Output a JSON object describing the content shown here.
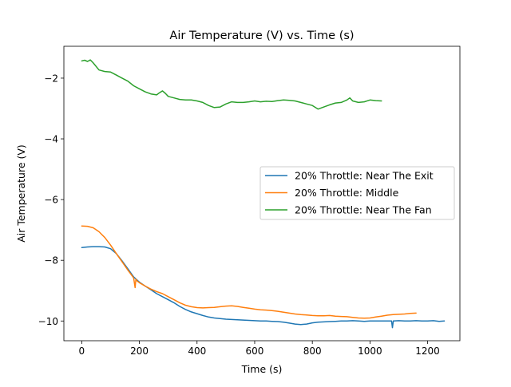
{
  "chart_data": {
    "type": "line",
    "title": "Air Temperature (V) vs. Time (s)",
    "xlabel": "Time (s)",
    "ylabel": "Air Temperature (V)",
    "xlim": [
      -62,
      1312
    ],
    "ylim": [
      -10.65,
      -0.95
    ],
    "xticks": [
      {
        "value": 0,
        "label": "0"
      },
      {
        "value": 200,
        "label": "200"
      },
      {
        "value": 400,
        "label": "400"
      },
      {
        "value": 600,
        "label": "600"
      },
      {
        "value": 800,
        "label": "800"
      },
      {
        "value": 1000,
        "label": "1000"
      },
      {
        "value": 1200,
        "label": "1200"
      }
    ],
    "yticks": [
      {
        "value": -10,
        "label": "−10"
      },
      {
        "value": -8,
        "label": "−8"
      },
      {
        "value": -6,
        "label": "−6"
      },
      {
        "value": -4,
        "label": "−4"
      },
      {
        "value": -2,
        "label": "−2"
      }
    ],
    "grid": false,
    "legend_position": "center-right",
    "series": [
      {
        "name": "20% Throttle: Near The Exit",
        "color": "#1f77b4",
        "x": [
          0,
          20,
          40,
          60,
          80,
          100,
          120,
          140,
          160,
          180,
          200,
          220,
          240,
          260,
          280,
          300,
          320,
          340,
          360,
          380,
          400,
          420,
          440,
          460,
          480,
          500,
          520,
          540,
          560,
          580,
          600,
          620,
          640,
          660,
          680,
          700,
          720,
          740,
          760,
          780,
          800,
          820,
          840,
          860,
          880,
          900,
          920,
          940,
          960,
          980,
          1000,
          1020,
          1040,
          1060,
          1075,
          1078,
          1081,
          1100,
          1120,
          1140,
          1160,
          1180,
          1200,
          1220,
          1240,
          1258
        ],
        "y": [
          -7.58,
          -7.56,
          -7.55,
          -7.55,
          -7.56,
          -7.62,
          -7.78,
          -8.02,
          -8.28,
          -8.55,
          -8.72,
          -8.85,
          -8.97,
          -9.1,
          -9.2,
          -9.3,
          -9.4,
          -9.52,
          -9.62,
          -9.7,
          -9.76,
          -9.82,
          -9.87,
          -9.9,
          -9.92,
          -9.94,
          -9.95,
          -9.96,
          -9.97,
          -9.98,
          -9.99,
          -10.0,
          -10.0,
          -10.01,
          -10.02,
          -10.04,
          -10.07,
          -10.1,
          -10.12,
          -10.1,
          -10.06,
          -10.04,
          -10.03,
          -10.02,
          -10.01,
          -10.0,
          -10.0,
          -9.99,
          -10.0,
          -10.01,
          -10.0,
          -10.0,
          -10.0,
          -10.0,
          -10.0,
          -10.22,
          -10.0,
          -9.99,
          -10.0,
          -10.0,
          -9.99,
          -10.0,
          -10.0,
          -9.99,
          -10.01,
          -10.0
        ]
      },
      {
        "name": "20% Throttle: Middle",
        "color": "#ff7f0e",
        "x": [
          0,
          20,
          40,
          60,
          80,
          100,
          120,
          140,
          160,
          180,
          185,
          188,
          192,
          200,
          220,
          240,
          260,
          280,
          300,
          320,
          340,
          360,
          380,
          400,
          420,
          440,
          460,
          480,
          500,
          520,
          540,
          560,
          580,
          600,
          620,
          640,
          660,
          680,
          700,
          720,
          740,
          760,
          780,
          800,
          820,
          840,
          860,
          880,
          900,
          920,
          940,
          960,
          980,
          1000,
          1020,
          1040,
          1060,
          1080,
          1100,
          1120,
          1140,
          1160
        ],
        "y": [
          -6.87,
          -6.88,
          -6.93,
          -7.06,
          -7.25,
          -7.5,
          -7.78,
          -8.05,
          -8.32,
          -8.58,
          -8.9,
          -8.62,
          -8.68,
          -8.74,
          -8.85,
          -8.95,
          -9.03,
          -9.1,
          -9.2,
          -9.3,
          -9.4,
          -9.48,
          -9.53,
          -9.56,
          -9.57,
          -9.56,
          -9.55,
          -9.53,
          -9.51,
          -9.5,
          -9.52,
          -9.55,
          -9.58,
          -9.61,
          -9.63,
          -9.64,
          -9.66,
          -9.68,
          -9.71,
          -9.74,
          -9.77,
          -9.79,
          -9.8,
          -9.82,
          -9.83,
          -9.83,
          -9.82,
          -9.84,
          -9.85,
          -9.86,
          -9.88,
          -9.9,
          -9.91,
          -9.9,
          -9.87,
          -9.84,
          -9.81,
          -9.79,
          -9.78,
          -9.77,
          -9.75,
          -9.74
        ]
      },
      {
        "name": "20% Throttle: Near The Fan",
        "color": "#2ca02c",
        "x": [
          0,
          10,
          20,
          30,
          40,
          60,
          80,
          100,
          120,
          140,
          160,
          180,
          200,
          220,
          240,
          260,
          270,
          280,
          290,
          300,
          320,
          340,
          360,
          380,
          400,
          420,
          440,
          460,
          480,
          500,
          520,
          540,
          560,
          580,
          600,
          620,
          640,
          660,
          680,
          700,
          720,
          740,
          760,
          780,
          800,
          820,
          840,
          860,
          880,
          900,
          920,
          930,
          940,
          960,
          980,
          1000,
          1020,
          1040
        ],
        "y": [
          -1.43,
          -1.41,
          -1.45,
          -1.4,
          -1.5,
          -1.73,
          -1.78,
          -1.8,
          -1.9,
          -2.0,
          -2.1,
          -2.25,
          -2.35,
          -2.45,
          -2.52,
          -2.55,
          -2.48,
          -2.42,
          -2.5,
          -2.6,
          -2.65,
          -2.7,
          -2.72,
          -2.72,
          -2.75,
          -2.8,
          -2.9,
          -2.97,
          -2.95,
          -2.85,
          -2.78,
          -2.8,
          -2.8,
          -2.78,
          -2.75,
          -2.78,
          -2.76,
          -2.77,
          -2.74,
          -2.72,
          -2.73,
          -2.75,
          -2.8,
          -2.85,
          -2.9,
          -3.02,
          -2.95,
          -2.88,
          -2.82,
          -2.8,
          -2.72,
          -2.65,
          -2.75,
          -2.8,
          -2.78,
          -2.72,
          -2.74,
          -2.75
        ]
      }
    ]
  }
}
